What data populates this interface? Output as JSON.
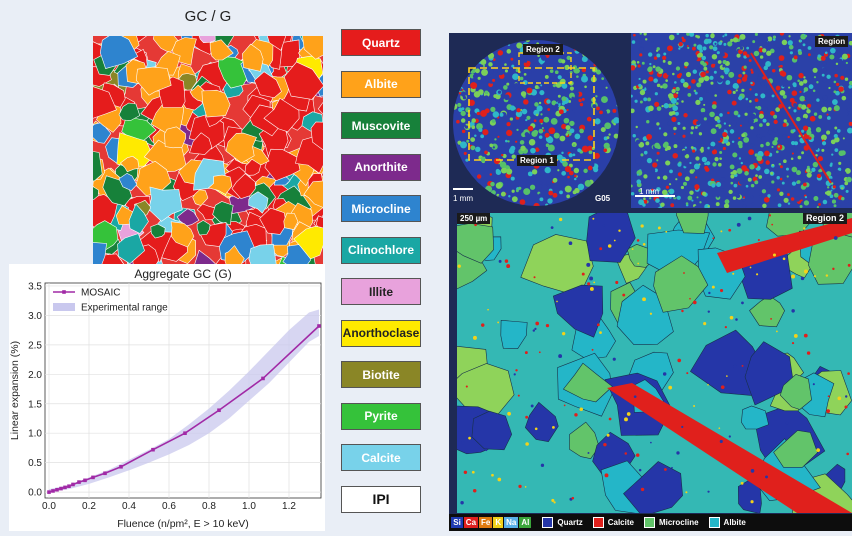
{
  "map_title": "GC / G",
  "minerals": [
    {
      "name": "Quartz",
      "bg": "#e51c1c",
      "fg": "#ffffff"
    },
    {
      "name": "Albite",
      "bg": "#ffa21a",
      "fg": "#ffffff"
    },
    {
      "name": "Muscovite",
      "bg": "#17813a",
      "fg": "#ffffff"
    },
    {
      "name": "Anorthite",
      "bg": "#7d2a8c",
      "fg": "#ffffff"
    },
    {
      "name": "Microcline",
      "bg": "#2e84cf",
      "fg": "#ffffff"
    },
    {
      "name": "Clinochlore",
      "bg": "#1aa7a4",
      "fg": "#ffffff"
    },
    {
      "name": "Illite",
      "bg": "#e8a2dc",
      "fg": "#222222"
    },
    {
      "name": "Anorthoclase",
      "bg": "#ffea00",
      "fg": "#222222"
    },
    {
      "name": "Biotite",
      "bg": "#8a8626",
      "fg": "#ffffff"
    },
    {
      "name": "Pyrite",
      "bg": "#35c23a",
      "fg": "#ffffff"
    },
    {
      "name": "Calcite",
      "bg": "#78d2ea",
      "fg": "#ffffff"
    },
    {
      "name": "IPI",
      "bg": "#ffffff",
      "fg": "#111111"
    }
  ],
  "chart_data": {
    "type": "line",
    "title": "Aggregate GC (G)",
    "xlabel": "Fluence (n/pm², E > 10 keV)",
    "ylabel": "Linear expansion (%)",
    "xlim": [
      -0.02,
      1.36
    ],
    "ylim": [
      -0.1,
      3.55
    ],
    "x_ticks": [
      "0.0",
      "0.2",
      "0.4",
      "0.6",
      "0.8",
      "1.0",
      "1.2"
    ],
    "y_ticks": [
      "0.0",
      "0.5",
      "1.0",
      "1.5",
      "2.0",
      "2.5",
      "3.0",
      "3.5"
    ],
    "grid": true,
    "legend_position": "top-left",
    "series": [
      {
        "name": "MOSAIC",
        "color": "#a12aa6",
        "x": [
          0.0,
          0.02,
          0.04,
          0.06,
          0.08,
          0.1,
          0.12,
          0.15,
          0.18,
          0.22,
          0.28,
          0.36,
          0.52,
          0.68,
          0.85,
          1.07,
          1.35
        ],
        "y": [
          0.0,
          0.02,
          0.04,
          0.06,
          0.08,
          0.1,
          0.13,
          0.17,
          0.2,
          0.25,
          0.32,
          0.43,
          0.72,
          1.0,
          1.39,
          1.93,
          2.82
        ]
      },
      {
        "name": "Experimental range",
        "color": "#c9c8ee",
        "x": [
          0.0,
          0.1,
          0.2,
          0.3,
          0.4,
          0.5,
          0.6,
          0.7,
          0.8,
          0.9,
          1.0,
          1.1,
          1.2,
          1.3,
          1.35
        ],
        "y_low": [
          0.0,
          0.05,
          0.14,
          0.25,
          0.37,
          0.5,
          0.64,
          0.8,
          1.0,
          1.25,
          1.55,
          1.85,
          2.2,
          2.55,
          2.65
        ],
        "y_high": [
          0.05,
          0.12,
          0.25,
          0.38,
          0.55,
          0.72,
          0.9,
          1.15,
          1.42,
          1.72,
          2.05,
          2.4,
          2.75,
          3.05,
          3.1
        ]
      }
    ]
  },
  "micro": {
    "labels": {
      "region2": "Region 2",
      "region1": "Region 1",
      "sample": "G05",
      "scale_1mm_a": "1 mm",
      "scale_1mm_b": "1 mm",
      "scale_250": "250 µm",
      "region_b": "Region",
      "region2_zoom": "Region 2"
    },
    "elements": [
      {
        "sym": "Si",
        "bg": "#1f3bb3"
      },
      {
        "sym": "Ca",
        "bg": "#e02020"
      },
      {
        "sym": "Fe",
        "bg": "#e07a10"
      },
      {
        "sym": "K",
        "bg": "#f2d21a"
      },
      {
        "sym": "Na",
        "bg": "#59b0e8"
      },
      {
        "sym": "Al",
        "bg": "#3aa63a"
      }
    ],
    "phases": [
      {
        "name": "Quartz",
        "color": "#2536a8"
      },
      {
        "name": "Calcite",
        "color": "#e0201c"
      },
      {
        "name": "Microcline",
        "color": "#62c46a"
      },
      {
        "name": "Albite",
        "color": "#24b6c8"
      }
    ]
  }
}
